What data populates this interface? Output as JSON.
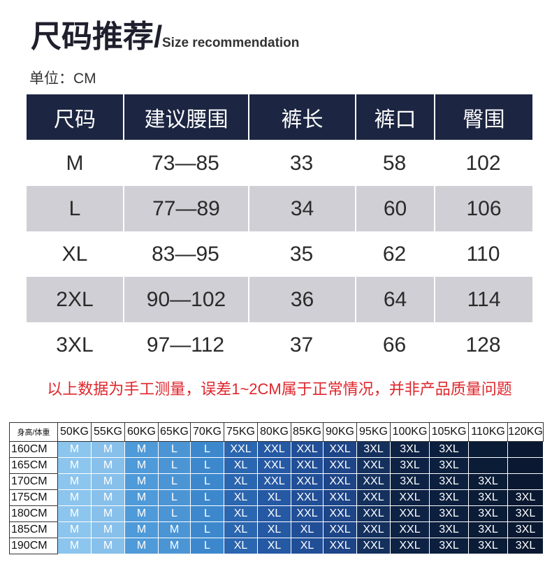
{
  "title": {
    "cn": "尺码推荐/",
    "en": "Size recommendation"
  },
  "unit_label": "单位：CM",
  "size_table": {
    "headers": [
      "尺码",
      "建议腰围",
      "裤长",
      "裤口",
      "臀围"
    ],
    "rows": [
      [
        "M",
        "73—85",
        "33",
        "58",
        "102"
      ],
      [
        "L",
        "77—89",
        "34",
        "60",
        "106"
      ],
      [
        "XL",
        "83—95",
        "35",
        "62",
        "110"
      ],
      [
        "2XL",
        "90—102",
        "36",
        "64",
        "114"
      ],
      [
        "3XL",
        "97—112",
        "37",
        "66",
        "128"
      ]
    ]
  },
  "note": "以上数据为手工测量，误差1~2CM属于正常情况，并非产品质量问题",
  "fit_table": {
    "corner_label": "身高/体重",
    "weights": [
      "50KG",
      "55KG",
      "60KG",
      "65KG",
      "70KG",
      "75KG",
      "80KG",
      "85KG",
      "90KG",
      "95KG",
      "100KG",
      "105KG",
      "110KG",
      "120KG"
    ],
    "rows": [
      {
        "height": "160CM",
        "sizes": [
          "M",
          "M",
          "M",
          "L",
          "L",
          "XXL",
          "XXL",
          "XXL",
          "XXL",
          "3XL",
          "3XL",
          "3XL",
          "",
          ""
        ]
      },
      {
        "height": "165CM",
        "sizes": [
          "M",
          "M",
          "M",
          "L",
          "L",
          "XL",
          "XXL",
          "XXL",
          "XXL",
          "XXL",
          "3XL",
          "3XL",
          "",
          ""
        ]
      },
      {
        "height": "170CM",
        "sizes": [
          "M",
          "M",
          "M",
          "L",
          "L",
          "XL",
          "XXL",
          "XXL",
          "XXL",
          "XXL",
          "3XL",
          "3XL",
          "3XL",
          ""
        ]
      },
      {
        "height": "175CM",
        "sizes": [
          "M",
          "M",
          "M",
          "L",
          "L",
          "XL",
          "XL",
          "XXL",
          "XXL",
          "XXL",
          "XXL",
          "3XL",
          "3XL",
          "3XL"
        ]
      },
      {
        "height": "180CM",
        "sizes": [
          "M",
          "M",
          "M",
          "L",
          "L",
          "XL",
          "XL",
          "XXL",
          "XXL",
          "XXL",
          "XXL",
          "3XL",
          "3XL",
          "3XL"
        ]
      },
      {
        "height": "185CM",
        "sizes": [
          "M",
          "M",
          "M",
          "M",
          "L",
          "XL",
          "XL",
          "XL",
          "XXL",
          "XXL",
          "XXL",
          "3XL",
          "3XL",
          "3XL"
        ]
      },
      {
        "height": "190CM",
        "sizes": [
          "M",
          "M",
          "M",
          "M",
          "L",
          "XL",
          "XL",
          "XL",
          "XXL",
          "XXL",
          "XXL",
          "3XL",
          "3XL",
          "3XL"
        ]
      }
    ],
    "column_colors": [
      "#8cc5ed",
      "#87c0ea",
      "#4f9ad8",
      "#4b95d5",
      "#3d88cd",
      "#2b66b0",
      "#2559a4",
      "#214f97",
      "#1d4587",
      "#14305d",
      "#0d2244",
      "#0c1f3e",
      "#0b1c37",
      "#0a1931"
    ]
  },
  "colors": {
    "header_bg": "#1c2541",
    "stripe_bg": "#cfcfd5",
    "note_red": "#de262c",
    "title_text": "#1f1f2d"
  }
}
